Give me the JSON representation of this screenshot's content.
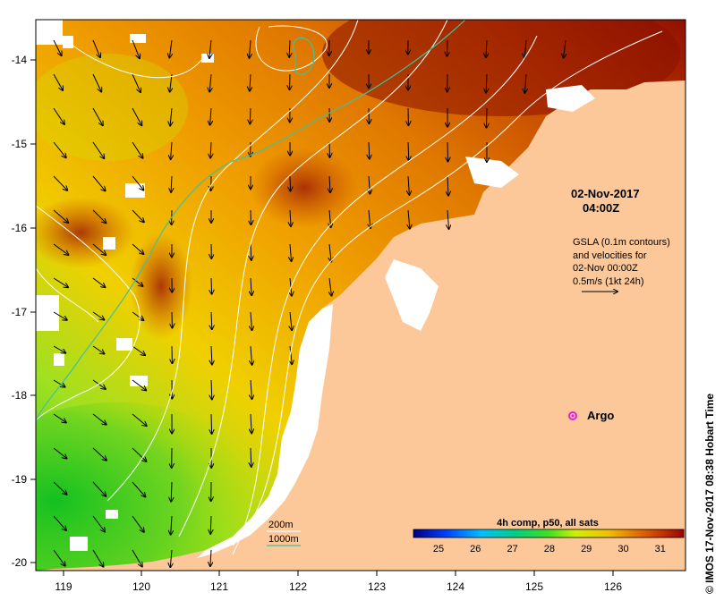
{
  "map": {
    "date": "02-Nov-2017",
    "time": "04:00Z",
    "gsla_lines": [
      "GSLA (0.1m contours)",
      "and velocities for",
      "02-Nov 00:00Z",
      "0.5m/s (1kt 24h)"
    ],
    "argo_label": "Argo",
    "credit": "© IMOS 17-Nov-2017 08:38 Hobart Time",
    "depth_legend": [
      {
        "label": "200m",
        "color": "#ffffff"
      },
      {
        "label": "1000m",
        "color": "#40c0a0"
      }
    ],
    "colorbar": {
      "title": "4h comp, p50, all sats",
      "ticks": [
        "25",
        "26",
        "27",
        "28",
        "29",
        "30",
        "31"
      ]
    },
    "lon_ticks": [
      "119",
      "120",
      "121",
      "122",
      "123",
      "124",
      "125",
      "126"
    ],
    "lat_ticks": [
      "-14",
      "-15",
      "-16",
      "-17",
      "-18",
      "-19",
      "-20"
    ],
    "colors": {
      "land": "#fcc89a",
      "sst_warm": "#9a1a08",
      "sst_mid": "#f0a000",
      "sst_cool": "#30d020",
      "argo": "#e020e0"
    }
  }
}
